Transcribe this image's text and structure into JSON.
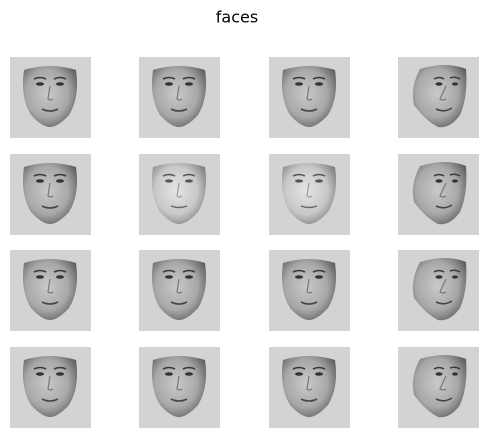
{
  "title": "faces"
}
